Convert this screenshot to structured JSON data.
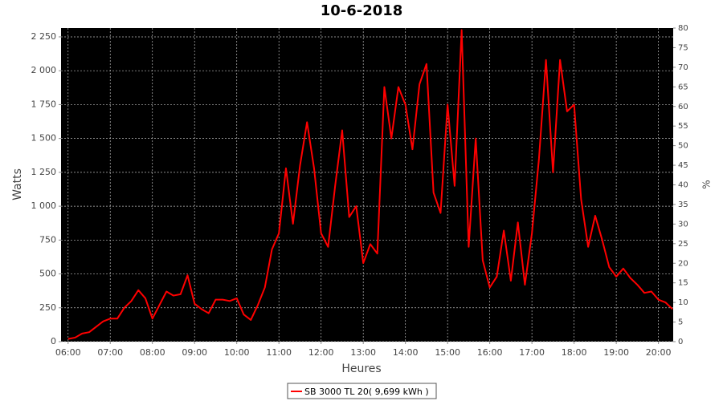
{
  "chart_data": {
    "type": "line",
    "title": "10-6-2018",
    "x_label": "Heures",
    "y_label": "Watts",
    "y2_label": "%",
    "x": [
      "06:00",
      "06:10",
      "06:20",
      "06:30",
      "06:40",
      "06:50",
      "07:00",
      "07:10",
      "07:20",
      "07:30",
      "07:40",
      "07:50",
      "08:00",
      "08:10",
      "08:20",
      "08:30",
      "08:40",
      "08:50",
      "09:00",
      "09:10",
      "09:20",
      "09:30",
      "09:40",
      "09:50",
      "10:00",
      "10:10",
      "10:20",
      "10:30",
      "10:40",
      "10:50",
      "11:00",
      "11:10",
      "11:20",
      "11:30",
      "11:40",
      "11:50",
      "12:00",
      "12:10",
      "12:20",
      "12:30",
      "12:40",
      "12:50",
      "13:00",
      "13:10",
      "13:20",
      "13:30",
      "13:40",
      "13:50",
      "14:00",
      "14:10",
      "14:20",
      "14:30",
      "14:40",
      "14:50",
      "15:00",
      "15:10",
      "15:20",
      "15:30",
      "15:40",
      "15:50",
      "16:00",
      "16:10",
      "16:20",
      "16:30",
      "16:40",
      "16:50",
      "17:00",
      "17:10",
      "17:20",
      "17:30",
      "17:40",
      "17:50",
      "18:00",
      "18:10",
      "18:20",
      "18:30",
      "18:40",
      "18:50",
      "19:00",
      "19:10",
      "19:20",
      "19:30",
      "19:40",
      "19:50",
      "20:00",
      "20:10",
      "20:20"
    ],
    "series": [
      {
        "name": "SB 3000 TL 20( 9,699 kWh )",
        "color": "#ff0000",
        "values": [
          20,
          30,
          60,
          70,
          110,
          150,
          170,
          170,
          250,
          300,
          380,
          320,
          170,
          270,
          370,
          340,
          350,
          490,
          280,
          240,
          210,
          310,
          310,
          300,
          320,
          200,
          160,
          270,
          400,
          680,
          800,
          1280,
          870,
          1300,
          1620,
          1280,
          800,
          700,
          1150,
          1560,
          920,
          1000,
          580,
          720,
          650,
          1880,
          1500,
          1880,
          1750,
          1420,
          1900,
          2050,
          1100,
          950,
          1750,
          1150,
          2300,
          700,
          1500,
          600,
          400,
          480,
          820,
          450,
          880,
          420,
          800,
          1350,
          2080,
          1250,
          2080,
          1700,
          1750,
          1050,
          700,
          930,
          750,
          550,
          480,
          540,
          470,
          420,
          360,
          370,
          310,
          290,
          240
        ]
      }
    ],
    "xlim": [
      "05:50",
      "20:21"
    ],
    "xticks": [
      "06:00",
      "07:00",
      "08:00",
      "09:00",
      "10:00",
      "11:00",
      "12:00",
      "13:00",
      "14:00",
      "15:00",
      "16:00",
      "17:00",
      "18:00",
      "19:00",
      "20:00"
    ],
    "ylim": [
      0,
      2315
    ],
    "yticks": [
      0,
      250,
      500,
      750,
      {
        "value": 1000,
        "label": "1 000"
      },
      {
        "value": 1250,
        "label": "1 250"
      },
      {
        "value": 1500,
        "label": "1 500"
      },
      {
        "value": 1750,
        "label": "1 750"
      },
      {
        "value": 2000,
        "label": "2 000"
      },
      {
        "value": 2250,
        "label": "2 250"
      }
    ],
    "y2lim": [
      0,
      80
    ],
    "y2ticks": [
      0,
      5,
      10,
      15,
      20,
      25,
      30,
      35,
      40,
      45,
      50,
      55,
      60,
      65,
      70,
      75,
      80
    ],
    "grid": true
  }
}
